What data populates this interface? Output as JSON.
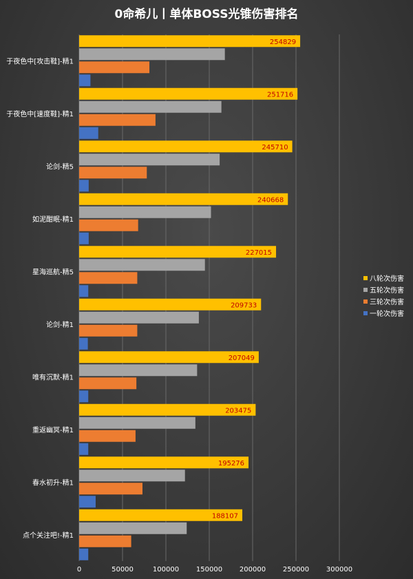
{
  "chart_data": {
    "type": "bar",
    "orientation": "horizontal",
    "title": "0命希儿丨单体BOSS光锥伤害排名",
    "categories": [
      "于夜色中[攻击鞋]-精1",
      "于夜色中[速度鞋]-精1",
      "论剑-精5",
      "如泥酣眠-精1",
      "星海巡航-精5",
      "论剑-精1",
      "唯有沉默-精1",
      "重返幽冥-精1",
      "春水初升-精1",
      "点个关注吧!-精1"
    ],
    "series": [
      {
        "name": "八轮次伤害",
        "color": "#ffc000",
        "labeled": true,
        "values": [
          254829,
          251716,
          245710,
          240668,
          227015,
          209733,
          207049,
          203475,
          195276,
          188107
        ]
      },
      {
        "name": "五轮次伤害",
        "color": "#a5a5a5",
        "values": [
          168000,
          164000,
          162000,
          152000,
          145000,
          138000,
          136000,
          134000,
          122000,
          124000
        ]
      },
      {
        "name": "三轮次伤害",
        "color": "#ed7d31",
        "values": [
          81000,
          88000,
          78000,
          68000,
          67000,
          67000,
          66000,
          65000,
          73000,
          60000
        ]
      },
      {
        "name": "一轮次伤害",
        "color": "#4472c4",
        "values": [
          13000,
          22000,
          11000,
          11000,
          10500,
          10000,
          10500,
          10500,
          19000,
          10500
        ]
      }
    ],
    "xlim": [
      0,
      300000
    ],
    "xticks": [
      "0",
      "50000",
      "100000",
      "150000",
      "200000",
      "250000",
      "300000"
    ],
    "grid": true,
    "legend": "right",
    "label_color": "#c00000"
  }
}
